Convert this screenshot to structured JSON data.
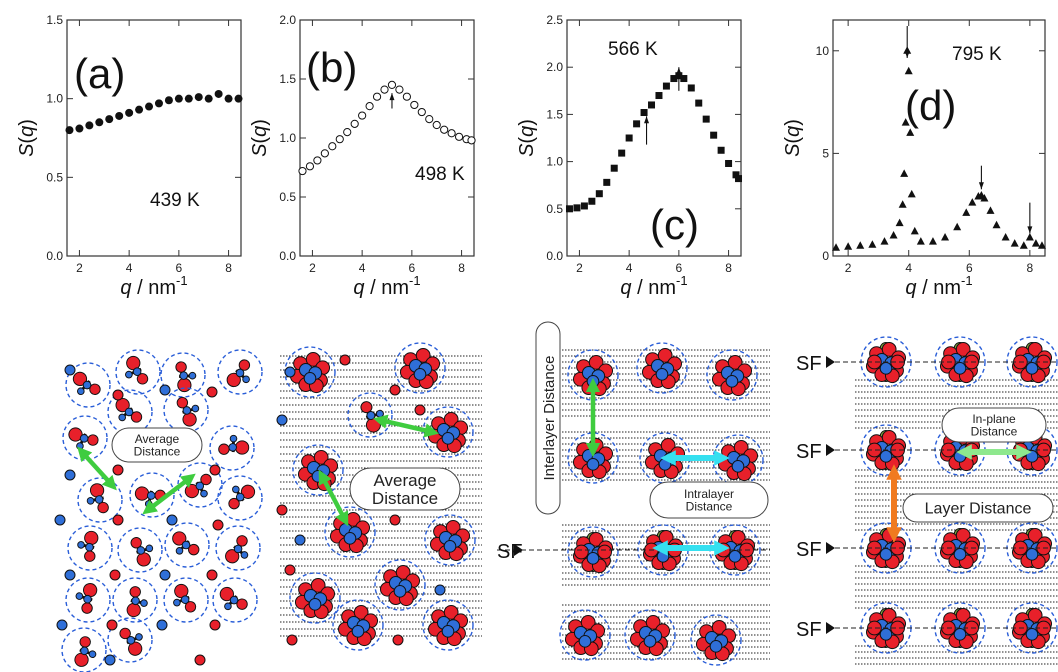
{
  "chart_data": [
    {
      "type": "scatter",
      "panel_label": "(a)",
      "temperature": "439 K",
      "xlabel_var": "q",
      "xlabel_unit": "nm",
      "xlabel_exp": "-1",
      "ylabel": "S(q)",
      "xlim": [
        1.5,
        8.5
      ],
      "ylim": [
        0.0,
        1.5
      ],
      "xticks": [
        "2",
        "4",
        "6",
        "8"
      ],
      "yticks": [
        "0.0",
        "0.5",
        "1.0",
        "1.5"
      ],
      "marker": "filled-circle",
      "x": [
        1.6,
        2.0,
        2.4,
        2.8,
        3.2,
        3.6,
        4.0,
        4.4,
        4.8,
        5.2,
        5.6,
        6.0,
        6.4,
        6.8,
        7.2,
        7.6,
        8.0,
        8.4
      ],
      "y": [
        0.8,
        0.81,
        0.83,
        0.85,
        0.87,
        0.89,
        0.91,
        0.93,
        0.95,
        0.97,
        0.99,
        1.0,
        1.0,
        1.01,
        1.0,
        1.03,
        1.0,
        1.0
      ],
      "arrows_at_x": []
    },
    {
      "type": "scatter",
      "panel_label": "(b)",
      "temperature": "498 K",
      "xlabel_var": "q",
      "xlabel_unit": "nm",
      "xlabel_exp": "-1",
      "ylabel": "S(q)",
      "xlim": [
        1.5,
        8.5
      ],
      "ylim": [
        0.0,
        2.0
      ],
      "xticks": [
        "2",
        "4",
        "6",
        "8"
      ],
      "yticks": [
        "0.0",
        "0.5",
        "1.0",
        "1.5",
        "2.0"
      ],
      "marker": "open-circle",
      "x": [
        1.6,
        1.9,
        2.2,
        2.5,
        2.8,
        3.1,
        3.4,
        3.7,
        4.0,
        4.3,
        4.6,
        4.9,
        5.2,
        5.5,
        5.8,
        6.1,
        6.4,
        6.7,
        7.0,
        7.3,
        7.6,
        7.9,
        8.2,
        8.4
      ],
      "y": [
        0.72,
        0.76,
        0.81,
        0.87,
        0.93,
        0.99,
        1.05,
        1.12,
        1.19,
        1.27,
        1.35,
        1.41,
        1.45,
        1.41,
        1.35,
        1.28,
        1.22,
        1.16,
        1.11,
        1.07,
        1.04,
        1.01,
        0.99,
        0.98
      ],
      "arrows_at_x": [
        5.2
      ]
    },
    {
      "type": "scatter",
      "panel_label": "(c)",
      "temperature": "566 K",
      "xlabel_var": "q",
      "xlabel_unit": "nm",
      "xlabel_exp": "-1",
      "ylabel": "S(q)",
      "xlim": [
        1.5,
        8.5
      ],
      "ylim": [
        0.0,
        2.5
      ],
      "xticks": [
        "2",
        "4",
        "6",
        "8"
      ],
      "yticks": [
        "0.0",
        "0.5",
        "1.0",
        "1.5",
        "2.0",
        "2.5"
      ],
      "marker": "filled-square",
      "x": [
        1.6,
        1.9,
        2.2,
        2.5,
        2.8,
        3.1,
        3.4,
        3.7,
        4.0,
        4.3,
        4.6,
        4.9,
        5.2,
        5.5,
        5.8,
        6.0,
        6.2,
        6.5,
        6.8,
        7.1,
        7.4,
        7.7,
        8.0,
        8.3,
        8.4
      ],
      "y": [
        0.5,
        0.51,
        0.53,
        0.58,
        0.66,
        0.78,
        0.93,
        1.09,
        1.25,
        1.4,
        1.52,
        1.6,
        1.7,
        1.8,
        1.88,
        1.91,
        1.88,
        1.78,
        1.62,
        1.45,
        1.28,
        1.12,
        0.98,
        0.86,
        0.82
      ],
      "arrows_at_x": [
        4.7,
        6.0
      ]
    },
    {
      "type": "scatter",
      "panel_label": "(d)",
      "temperature": "795 K",
      "xlabel_var": "q",
      "xlabel_unit": "nm",
      "xlabel_exp": "-1",
      "ylabel": "S(q)",
      "xlim": [
        1.5,
        8.5
      ],
      "ylim": [
        0,
        11.5
      ],
      "xticks": [
        "2",
        "4",
        "6",
        "8"
      ],
      "yticks": [
        "0",
        "5",
        "10"
      ],
      "marker": "filled-triangle",
      "x": [
        1.6,
        2.0,
        2.4,
        2.8,
        3.2,
        3.5,
        3.7,
        3.8,
        3.85,
        3.9,
        3.95,
        4.0,
        4.05,
        4.1,
        4.2,
        4.4,
        4.8,
        5.2,
        5.6,
        5.9,
        6.1,
        6.3,
        6.4,
        6.5,
        6.7,
        6.9,
        7.2,
        7.5,
        7.8,
        8.0,
        8.2,
        8.4
      ],
      "y": [
        0.4,
        0.45,
        0.5,
        0.55,
        0.7,
        1.0,
        1.6,
        2.5,
        4.0,
        6.5,
        10.0,
        9.0,
        6.0,
        3.0,
        1.2,
        0.7,
        0.7,
        0.9,
        1.4,
        2.1,
        2.6,
        2.9,
        2.95,
        2.8,
        2.2,
        1.5,
        0.9,
        0.6,
        0.5,
        0.9,
        0.6,
        0.5
      ],
      "arrows_at_x": [
        3.95,
        6.4,
        8.0
      ]
    }
  ],
  "diagrams": {
    "a": {
      "bubble": [
        "Average",
        "Distance"
      ]
    },
    "b": {
      "bubble": [
        "Average",
        "Distance"
      ]
    },
    "c": {
      "side_label": "Interlayer Distance",
      "bubble": [
        "Intralayer",
        "Distance"
      ],
      "sf": "SF"
    },
    "d": {
      "bubble_top": [
        "In-plane",
        "Distance"
      ],
      "bubble_mid": "Layer Distance",
      "sf": "SF"
    }
  },
  "colors": {
    "atom_red": "#e8202a",
    "atom_blue": "#2f6fd8",
    "atom_green": "#7fa23c",
    "dash_blue": "#2a5ed8",
    "arrow_green": "#3fcc3f",
    "arrow_cyan": "#35e0f0",
    "arrow_light_green": "#8ee88e",
    "arrow_orange": "#f07a20"
  }
}
